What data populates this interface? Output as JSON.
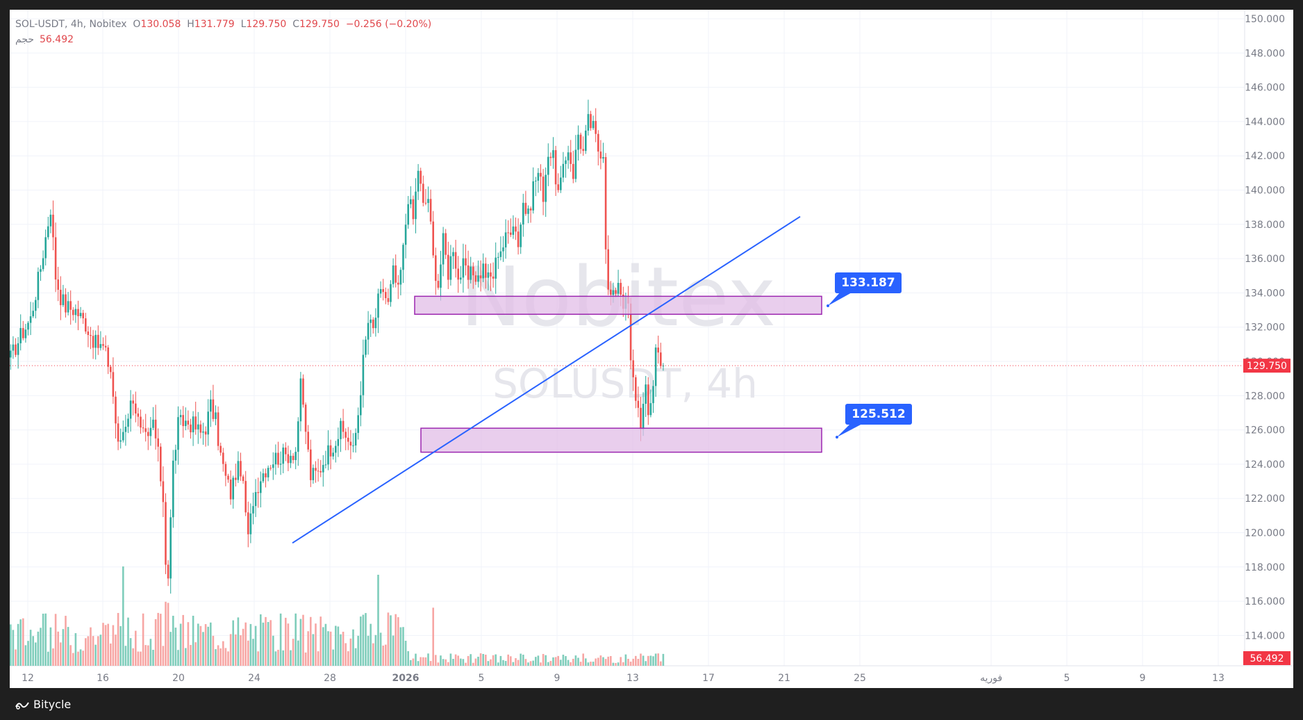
{
  "legend": {
    "symbol": "SOL-USDT, 4h, Nobitex",
    "open_label": "O",
    "open": "130.058",
    "high_label": "H",
    "high": "131.779",
    "low_label": "L",
    "low": "129.750",
    "close_label": "C",
    "close": "129.750",
    "change": "−0.256 (−0.20%)",
    "volume_label": "حجم",
    "volume": "56.492"
  },
  "watermark": {
    "line1": "Nobitex",
    "line2": "SOLUSDT, 4h"
  },
  "brand": "Bitycle",
  "colors": {
    "up": "#26a69a",
    "down": "#ef5350",
    "up_volume": "#7fcdbb",
    "down_volume": "#f7a6a4",
    "trendline": "#2962ff",
    "zone_fill": "#e1bee7",
    "zone_border": "#9c27b0",
    "callout": "#2962ff",
    "price_label": "#f23645"
  },
  "chart_data": {
    "type": "candlestick",
    "symbol": "SOL-USDT",
    "timeframe": "4h",
    "exchange": "Nobitex",
    "y_axis": {
      "ticks": [
        "150.000",
        "148.000",
        "146.000",
        "144.000",
        "142.000",
        "140.000",
        "138.000",
        "136.000",
        "134.000",
        "132.000",
        "130.000",
        "128.000",
        "126.000",
        "124.000",
        "122.000",
        "120.000",
        "118.000",
        "116.000",
        "114.000"
      ],
      "range": [
        112.4,
        150.5
      ]
    },
    "x_axis": {
      "labels": [
        "12",
        "16",
        "20",
        "24",
        "28",
        "2026",
        "5",
        "9",
        "13",
        "17",
        "21",
        "25",
        "فوریه",
        "5",
        "9",
        "13"
      ]
    },
    "last_price": "129.750",
    "last_volume": "56.492",
    "annotations": {
      "resistance_zone": {
        "top": 133.8,
        "bottom": 132.75,
        "label": "133.187"
      },
      "support_zone": {
        "top": 126.1,
        "bottom": 124.7,
        "label": "125.512"
      },
      "trendline": {
        "from_price": 119.4,
        "to_price": 138.45
      }
    },
    "price_path": [
      [
        0,
        130.2
      ],
      [
        4,
        131.5
      ],
      [
        8,
        132.5
      ],
      [
        12,
        135.5
      ],
      [
        16,
        139
      ],
      [
        18,
        135
      ],
      [
        20,
        133.8
      ],
      [
        22,
        133.2
      ],
      [
        26,
        133
      ],
      [
        30,
        132.2
      ],
      [
        34,
        131
      ],
      [
        37,
        130.8
      ],
      [
        40,
        129.5
      ],
      [
        43,
        125
      ],
      [
        46,
        126.5
      ],
      [
        49,
        128
      ],
      [
        52,
        125.8
      ],
      [
        55,
        125.3
      ],
      [
        57,
        126.5
      ],
      [
        59,
        124.5
      ],
      [
        61,
        122
      ],
      [
        62,
        118.5
      ],
      [
        63,
        117.5
      ],
      [
        65,
        124
      ],
      [
        67,
        126.3
      ],
      [
        70,
        126.5
      ],
      [
        73,
        126.3
      ],
      [
        76,
        125.8
      ],
      [
        78,
        126.2
      ],
      [
        80,
        127.4
      ],
      [
        82,
        126.5
      ],
      [
        84,
        124.5
      ],
      [
        86,
        123.2
      ],
      [
        88,
        122.3
      ],
      [
        90,
        123.5
      ],
      [
        92,
        123.8
      ],
      [
        94,
        121.2
      ],
      [
        95,
        119.6
      ],
      [
        97,
        122
      ],
      [
        100,
        123.3
      ],
      [
        103,
        124
      ],
      [
        106,
        124.4
      ],
      [
        110,
        124.5
      ],
      [
        114,
        124.8
      ],
      [
        116,
        128.5
      ],
      [
        118,
        126
      ],
      [
        120,
        123.3
      ],
      [
        123,
        123.5
      ],
      [
        126,
        124.5
      ],
      [
        129,
        125.2
      ],
      [
        132,
        126
      ],
      [
        135,
        125.5
      ],
      [
        137,
        124.7
      ],
      [
        139,
        127
      ],
      [
        141,
        130
      ],
      [
        143,
        132.3
      ],
      [
        145,
        131.8
      ],
      [
        147,
        133.5
      ],
      [
        149,
        134.2
      ],
      [
        151,
        133.3
      ],
      [
        153,
        135.2
      ],
      [
        155,
        134
      ],
      [
        157,
        136.5
      ],
      [
        159,
        139.7
      ],
      [
        161,
        138.3
      ],
      [
        163,
        141.3
      ],
      [
        165,
        139
      ],
      [
        167,
        139.6
      ],
      [
        169,
        136
      ],
      [
        171,
        134.5
      ],
      [
        173,
        137
      ],
      [
        175,
        135.2
      ],
      [
        177,
        136.8
      ],
      [
        179,
        134.8
      ],
      [
        181,
        135.5
      ],
      [
        183,
        134.8
      ],
      [
        185,
        135.2
      ],
      [
        187,
        134.9
      ],
      [
        189,
        135.5
      ],
      [
        191,
        134.8
      ],
      [
        193,
        135
      ],
      [
        195,
        136.5
      ],
      [
        197,
        136.8
      ],
      [
        199,
        137.5
      ],
      [
        201,
        138.3
      ],
      [
        203,
        137
      ],
      [
        205,
        139.3
      ],
      [
        207,
        138.4
      ],
      [
        209,
        140.3
      ],
      [
        211,
        141
      ],
      [
        213,
        139.8
      ],
      [
        215,
        142.3
      ],
      [
        217,
        141.8
      ],
      [
        219,
        139.8
      ],
      [
        221,
        141
      ],
      [
        223,
        142.5
      ],
      [
        225,
        141
      ],
      [
        227,
        143.3
      ],
      [
        229,
        142.2
      ],
      [
        231,
        144
      ],
      [
        233,
        143.6
      ],
      [
        235,
        142.4
      ],
      [
        237,
        142.3
      ],
      [
        238,
        137
      ],
      [
        239,
        134
      ],
      [
        241,
        133.7
      ],
      [
        243,
        134.8
      ],
      [
        245,
        133.5
      ],
      [
        247,
        133.3
      ],
      [
        248,
        129.8
      ],
      [
        250,
        128
      ],
      [
        252,
        126.5
      ],
      [
        254,
        128.2
      ],
      [
        255,
        126.8
      ],
      [
        257,
        128.8
      ],
      [
        258,
        130.8
      ],
      [
        260,
        130.2
      ],
      [
        261,
        129.75
      ]
    ]
  }
}
